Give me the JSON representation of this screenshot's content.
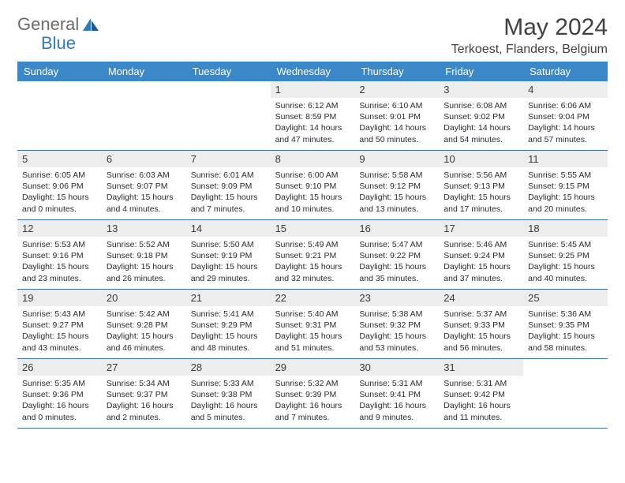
{
  "logo": {
    "part1": "General",
    "part2": "Blue"
  },
  "title": "May 2024",
  "location": "Terkoest, Flanders, Belgium",
  "colors": {
    "header_bg": "#3b88c8",
    "header_fg": "#ffffff",
    "daynum_bg": "#ededed",
    "border": "#3b6fa0",
    "logo_gray": "#6c6c6c",
    "logo_blue": "#2f79bf"
  },
  "day_names": [
    "Sunday",
    "Monday",
    "Tuesday",
    "Wednesday",
    "Thursday",
    "Friday",
    "Saturday"
  ],
  "leading_blanks": 3,
  "days": [
    {
      "n": 1,
      "sr": "6:12 AM",
      "ss": "8:59 PM",
      "dh": 14,
      "dm": 47
    },
    {
      "n": 2,
      "sr": "6:10 AM",
      "ss": "9:01 PM",
      "dh": 14,
      "dm": 50
    },
    {
      "n": 3,
      "sr": "6:08 AM",
      "ss": "9:02 PM",
      "dh": 14,
      "dm": 54
    },
    {
      "n": 4,
      "sr": "6:06 AM",
      "ss": "9:04 PM",
      "dh": 14,
      "dm": 57
    },
    {
      "n": 5,
      "sr": "6:05 AM",
      "ss": "9:06 PM",
      "dh": 15,
      "dm": 0
    },
    {
      "n": 6,
      "sr": "6:03 AM",
      "ss": "9:07 PM",
      "dh": 15,
      "dm": 4
    },
    {
      "n": 7,
      "sr": "6:01 AM",
      "ss": "9:09 PM",
      "dh": 15,
      "dm": 7
    },
    {
      "n": 8,
      "sr": "6:00 AM",
      "ss": "9:10 PM",
      "dh": 15,
      "dm": 10
    },
    {
      "n": 9,
      "sr": "5:58 AM",
      "ss": "9:12 PM",
      "dh": 15,
      "dm": 13
    },
    {
      "n": 10,
      "sr": "5:56 AM",
      "ss": "9:13 PM",
      "dh": 15,
      "dm": 17
    },
    {
      "n": 11,
      "sr": "5:55 AM",
      "ss": "9:15 PM",
      "dh": 15,
      "dm": 20
    },
    {
      "n": 12,
      "sr": "5:53 AM",
      "ss": "9:16 PM",
      "dh": 15,
      "dm": 23
    },
    {
      "n": 13,
      "sr": "5:52 AM",
      "ss": "9:18 PM",
      "dh": 15,
      "dm": 26
    },
    {
      "n": 14,
      "sr": "5:50 AM",
      "ss": "9:19 PM",
      "dh": 15,
      "dm": 29
    },
    {
      "n": 15,
      "sr": "5:49 AM",
      "ss": "9:21 PM",
      "dh": 15,
      "dm": 32
    },
    {
      "n": 16,
      "sr": "5:47 AM",
      "ss": "9:22 PM",
      "dh": 15,
      "dm": 35
    },
    {
      "n": 17,
      "sr": "5:46 AM",
      "ss": "9:24 PM",
      "dh": 15,
      "dm": 37
    },
    {
      "n": 18,
      "sr": "5:45 AM",
      "ss": "9:25 PM",
      "dh": 15,
      "dm": 40
    },
    {
      "n": 19,
      "sr": "5:43 AM",
      "ss": "9:27 PM",
      "dh": 15,
      "dm": 43
    },
    {
      "n": 20,
      "sr": "5:42 AM",
      "ss": "9:28 PM",
      "dh": 15,
      "dm": 46
    },
    {
      "n": 21,
      "sr": "5:41 AM",
      "ss": "9:29 PM",
      "dh": 15,
      "dm": 48
    },
    {
      "n": 22,
      "sr": "5:40 AM",
      "ss": "9:31 PM",
      "dh": 15,
      "dm": 51
    },
    {
      "n": 23,
      "sr": "5:38 AM",
      "ss": "9:32 PM",
      "dh": 15,
      "dm": 53
    },
    {
      "n": 24,
      "sr": "5:37 AM",
      "ss": "9:33 PM",
      "dh": 15,
      "dm": 56
    },
    {
      "n": 25,
      "sr": "5:36 AM",
      "ss": "9:35 PM",
      "dh": 15,
      "dm": 58
    },
    {
      "n": 26,
      "sr": "5:35 AM",
      "ss": "9:36 PM",
      "dh": 16,
      "dm": 0
    },
    {
      "n": 27,
      "sr": "5:34 AM",
      "ss": "9:37 PM",
      "dh": 16,
      "dm": 2
    },
    {
      "n": 28,
      "sr": "5:33 AM",
      "ss": "9:38 PM",
      "dh": 16,
      "dm": 5
    },
    {
      "n": 29,
      "sr": "5:32 AM",
      "ss": "9:39 PM",
      "dh": 16,
      "dm": 7
    },
    {
      "n": 30,
      "sr": "5:31 AM",
      "ss": "9:41 PM",
      "dh": 16,
      "dm": 9
    },
    {
      "n": 31,
      "sr": "5:31 AM",
      "ss": "9:42 PM",
      "dh": 16,
      "dm": 11
    }
  ],
  "trailing_blanks": 1,
  "labels": {
    "sunrise": "Sunrise:",
    "sunset": "Sunset:",
    "daylight": "Daylight:",
    "hours": "hours",
    "and": "and",
    "minutes": "minutes."
  }
}
